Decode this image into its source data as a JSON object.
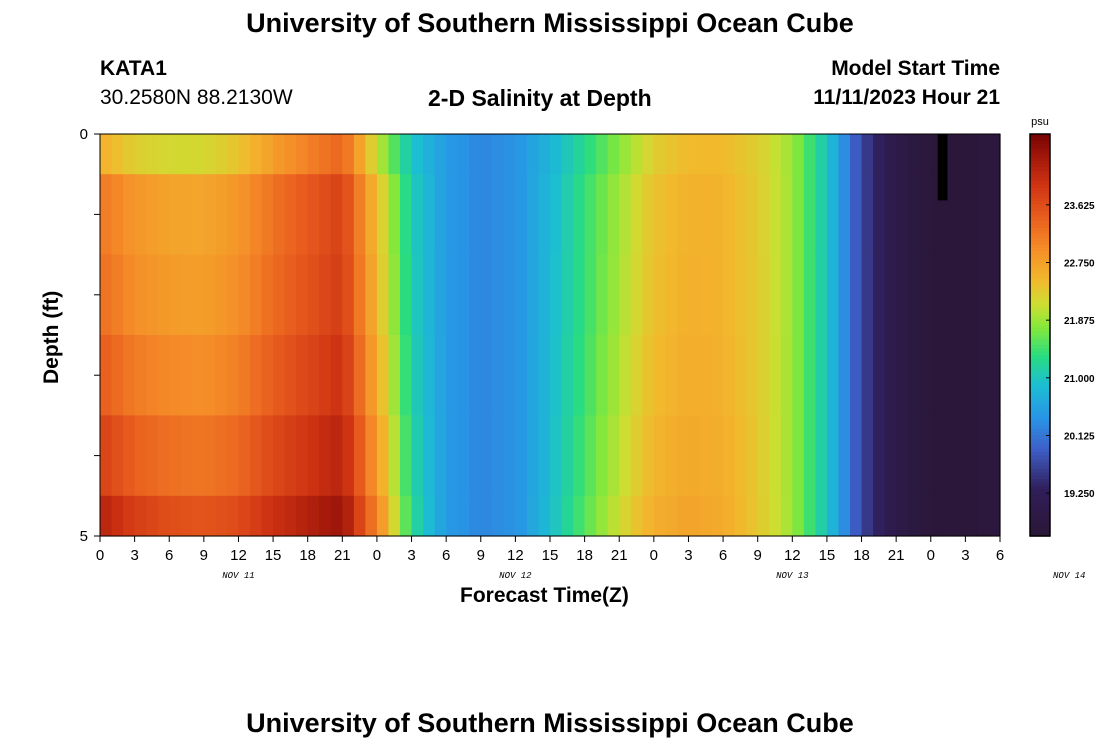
{
  "header": {
    "title": "University of Southern Mississippi Ocean Cube",
    "station_name": "KATA1",
    "station_coords": "30.2580N  88.2130W",
    "plot_title": "2-D Salinity at Depth",
    "model_start_label": "Model Start Time",
    "model_start_value": "11/11/2023 Hour 21",
    "footer_title": "University of Southern Mississippi Ocean Cube"
  },
  "chart_data": {
    "type": "heatmap",
    "title": "2-D Salinity at Depth",
    "xlabel": "Forecast Time(Z)",
    "ylabel": "Depth (ft)",
    "x_start": "2023-11-11 00Z",
    "x_end": "2023-11-14 06Z",
    "x_tick_labels": [
      "0",
      "3",
      "6",
      "9",
      "12",
      "15",
      "18",
      "21",
      "0",
      "3",
      "6",
      "9",
      "12",
      "15",
      "18",
      "21",
      "0",
      "3",
      "6",
      "9",
      "12",
      "15",
      "18",
      "21",
      "0",
      "3",
      "6"
    ],
    "day_labels": [
      {
        "label": "NOV 11"
      },
      {
        "label": "NOV 12"
      },
      {
        "label": "NOV 13"
      },
      {
        "label": "NOV 14"
      }
    ],
    "y_tick_labels": [
      "0",
      "5"
    ],
    "ylim": [
      0,
      5
    ],
    "depth_levels_ft": [
      0,
      1,
      2,
      3,
      4,
      5
    ],
    "colorbar": {
      "unit": "psu",
      "tick_labels": [
        "23.625",
        "22.750",
        "21.875",
        "21.000",
        "20.125",
        "19.250"
      ],
      "range": [
        18.6,
        24.7
      ],
      "colormap": "turbo"
    },
    "time_hours": [
      0,
      3,
      6,
      9,
      12,
      15,
      18,
      21,
      24,
      27,
      30,
      33,
      36,
      39,
      42,
      45,
      48,
      51,
      54,
      57,
      60,
      63,
      66,
      69,
      72,
      75,
      78
    ],
    "salinity_surface": [
      22.6,
      22.3,
      22.2,
      22.2,
      22.4,
      22.8,
      23.1,
      23.4,
      22.1,
      21.0,
      20.5,
      20.3,
      20.4,
      20.8,
      21.3,
      21.8,
      22.3,
      22.5,
      22.5,
      22.3,
      21.9,
      21.0,
      19.7,
      19.0,
      18.7,
      18.7,
      18.8
    ],
    "depth_offsets": [
      0,
      0.6,
      0.7,
      0.9,
      1.2,
      1.6
    ],
    "mask": {
      "hour_start": 72,
      "hour_end": 73,
      "depth_from": 0,
      "depth_to": 1,
      "color": "#000000"
    }
  }
}
